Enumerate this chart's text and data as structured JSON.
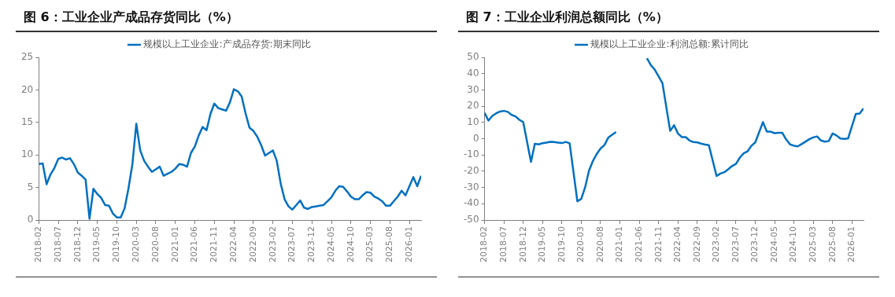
{
  "chart_data": [
    {
      "type": "line",
      "title": "图 6：工业企业产成品存货同比（%）",
      "legend": "top",
      "grid": false,
      "marker": "none",
      "categories": [
        "2018-02",
        null,
        null,
        null,
        null,
        "2018-07",
        null,
        null,
        null,
        null,
        "2018-12",
        null,
        null,
        null,
        null,
        "2019-05",
        null,
        null,
        null,
        null,
        "2019-10",
        null,
        null,
        null,
        null,
        "2020-03",
        null,
        null,
        null,
        null,
        "2020-08",
        null,
        null,
        null,
        null,
        "2021-01",
        null,
        null,
        null,
        null,
        "2021-06",
        null,
        null,
        null,
        null,
        "2021-11",
        null,
        null,
        null,
        null,
        "2022-04",
        null,
        null,
        null,
        null,
        "2022-09",
        null,
        null,
        null,
        null,
        "2023-02",
        null,
        null,
        null,
        null,
        "2023-07",
        null,
        null,
        null,
        null,
        "2023-12",
        null,
        null,
        null,
        null,
        "2024-05",
        null,
        null,
        null,
        null,
        "2024-10",
        null,
        null,
        null,
        null,
        "2025-03",
        null,
        null,
        null,
        null,
        "2025-08",
        null,
        null,
        null,
        null,
        "2026-01",
        null,
        null,
        null
      ],
      "ylim": [
        0,
        25
      ],
      "yticks": [
        0,
        5,
        10,
        15,
        20,
        25
      ],
      "series": [
        {
          "name": "规模以上工业企业:产成品存货:期末同比",
          "color": "#0070c0",
          "values": [
            8.6,
            8.7,
            5.5,
            7.0,
            8.0,
            9.4,
            9.6,
            9.3,
            9.5,
            8.6,
            7.3,
            6.8,
            6.2,
            0.2,
            4.8,
            4.0,
            3.4,
            2.3,
            2.2,
            1.0,
            0.4,
            0.4,
            1.8,
            4.9,
            8.6,
            14.8,
            10.7,
            9.1,
            8.2,
            7.4,
            7.8,
            8.2,
            6.8,
            7.1,
            7.4,
            7.9,
            8.6,
            8.5,
            8.2,
            10.3,
            11.3,
            13.0,
            14.3,
            13.8,
            16.3,
            17.9,
            17.2,
            17.0,
            16.8,
            18.1,
            20.1,
            19.8,
            19.0,
            16.4,
            14.2,
            13.7,
            12.8,
            11.5,
            9.9,
            10.3,
            10.7,
            9.1,
            5.6,
            3.2,
            2.1,
            1.6,
            2.3,
            3.0,
            1.9,
            1.7,
            2.0,
            2.1,
            2.2,
            2.3,
            2.9,
            3.5,
            4.5,
            5.2,
            5.1,
            4.4,
            3.6,
            3.2,
            3.2,
            3.8,
            4.3,
            4.2,
            3.6,
            3.3,
            2.9,
            2.2,
            2.2,
            2.9,
            3.6,
            4.5,
            3.8,
            5.2,
            6.6,
            5.2,
            6.8
          ]
        }
      ]
    },
    {
      "type": "line",
      "title": "图 7：工业企业利润总额同比（%）",
      "legend": "top",
      "grid": false,
      "marker": "none",
      "categories": [
        "2018-02",
        null,
        null,
        null,
        null,
        "2018-07",
        null,
        null,
        null,
        null,
        "2018-12",
        null,
        null,
        null,
        null,
        "2019-05",
        null,
        null,
        null,
        null,
        "2019-10",
        null,
        null,
        null,
        null,
        "2020-03",
        null,
        null,
        null,
        null,
        "2020-08",
        null,
        null,
        null,
        null,
        "2021-01",
        null,
        null,
        null,
        null,
        "2021-06",
        null,
        null,
        null,
        null,
        "2021-11",
        null,
        null,
        null,
        null,
        "2022-04",
        null,
        null,
        null,
        null,
        "2022-09",
        null,
        null,
        null,
        null,
        "2023-02",
        null,
        null,
        null,
        null,
        "2023-07",
        null,
        null,
        null,
        null,
        "2023-12",
        null,
        null,
        null,
        null,
        "2024-05",
        null,
        null,
        null,
        null,
        "2024-10",
        null,
        null,
        null,
        null,
        "2025-03",
        null,
        null,
        null,
        null,
        "2025-08",
        null,
        null,
        null,
        null,
        "2026-01",
        null,
        null,
        null
      ],
      "ylim": [
        -50,
        50
      ],
      "yticks": [
        -50,
        -40,
        -30,
        -20,
        -10,
        0,
        10,
        20,
        30,
        40,
        50
      ],
      "series": [
        {
          "name": "规模以上工业企业:利润总额:累计同比",
          "color": "#0070c0",
          "values": [
            15.9,
            11.1,
            14.0,
            15.6,
            16.7,
            17.1,
            16.5,
            14.6,
            13.7,
            11.6,
            10.2,
            null,
            -14.2,
            -3.1,
            -3.5,
            -2.8,
            -2.4,
            -1.9,
            -2.0,
            -2.4,
            -2.7,
            -2.0,
            -2.8,
            null,
            -38.5,
            -37.0,
            -29.9,
            -19.7,
            -13.8,
            -9.4,
            -6.0,
            -3.9,
            0.7,
            2.4,
            4.1,
            null,
            null,
            null,
            null,
            null,
            null,
            null,
            49.5,
            45.2,
            42.5,
            38.4,
            34.1,
            null,
            4.8,
            8.3,
            3.2,
            1.0,
            1.0,
            -1.1,
            -2.1,
            -2.3,
            -3.0,
            -3.6,
            -4.0,
            null,
            -22.9,
            -21.4,
            -20.6,
            -18.8,
            -16.8,
            -15.5,
            -11.7,
            -9.0,
            -7.8,
            -4.4,
            -2.3,
            null,
            10.2,
            4.3,
            4.3,
            3.4,
            3.6,
            3.6,
            -0.5,
            -3.5,
            -4.3,
            -4.7,
            -3.3,
            null,
            -0.3,
            0.8,
            1.4,
            -1.1,
            -1.8,
            -1.5,
            3.2,
            2.0,
            0.1,
            -0.1,
            0.1,
            null,
            15.2,
            15.5,
            18.6
          ]
        }
      ]
    }
  ]
}
